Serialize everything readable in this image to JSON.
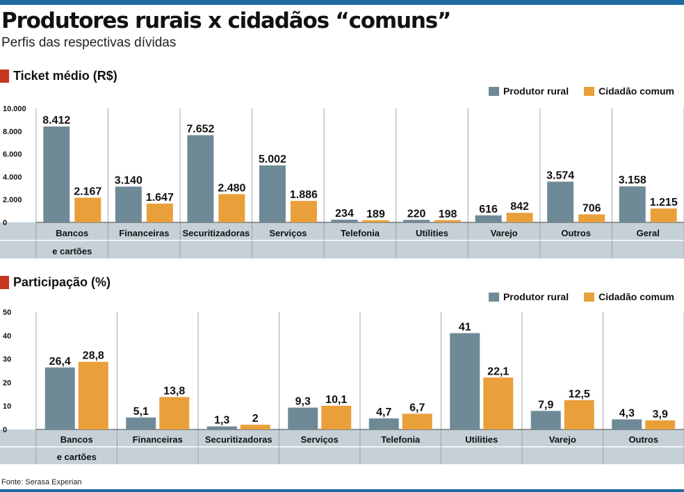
{
  "title": "Produtores rurais x cidadãos “comuns”",
  "subtitle": "Perfis das respectivas dívidas",
  "source": "Fonte: Serasa Experian",
  "colors": {
    "produtor": "#6f8a97",
    "cidadao": "#e9a03a",
    "accent": "#c6361c",
    "band": "#c5d0d7",
    "frame": "#1f6aa0"
  },
  "legend": {
    "produtor": "Produtor rural",
    "cidadao": "Cidadão comum"
  },
  "chart_data": [
    {
      "type": "bar",
      "title": "Ticket médio (R$)",
      "categories": [
        "Bancos",
        "Financeiras",
        "Securitizadoras",
        "Serviços",
        "Telefonia",
        "Utilities",
        "Varejo",
        "Outros",
        "Geral"
      ],
      "category_sublabels": [
        "e cartões",
        "",
        "",
        "",
        "",
        "",
        "",
        "",
        ""
      ],
      "series": [
        {
          "name": "Produtor rural",
          "values": [
            8412,
            3140,
            7652,
            5002,
            234,
            220,
            616,
            3574,
            3158
          ],
          "labels": [
            "8.412",
            "3.140",
            "7.652",
            "5.002",
            "234",
            "220",
            "616",
            "3.574",
            "3.158"
          ]
        },
        {
          "name": "Cidadão comum",
          "values": [
            2167,
            1647,
            2480,
            1886,
            189,
            198,
            842,
            706,
            1215
          ],
          "labels": [
            "2.167",
            "1.647",
            "2.480",
            "1.886",
            "189",
            "198",
            "842",
            "706",
            "1.215"
          ]
        }
      ],
      "yticks": [
        0,
        2000,
        4000,
        6000,
        8000,
        10000
      ],
      "ytick_labels": [
        "0",
        "2.000",
        "4.000",
        "6.000",
        "8.000",
        "10.000"
      ],
      "ylim": [
        0,
        10000
      ],
      "grid": false,
      "legend_position": "top-right"
    },
    {
      "type": "bar",
      "title": "Participação (%)",
      "categories": [
        "Bancos",
        "Financeiras",
        "Securitizadoras",
        "Serviços",
        "Telefonia",
        "Utilities",
        "Varejo",
        "Outros"
      ],
      "category_sublabels": [
        "e cartões",
        "",
        "",
        "",
        "",
        "",
        "",
        ""
      ],
      "series": [
        {
          "name": "Produtor rural",
          "values": [
            26.4,
            5.1,
            1.3,
            9.3,
            4.7,
            41,
            7.9,
            4.3
          ],
          "labels": [
            "26,4",
            "5,1",
            "1,3",
            "9,3",
            "4,7",
            "41",
            "7,9",
            "4,3"
          ]
        },
        {
          "name": "Cidadão comum",
          "values": [
            28.8,
            13.8,
            2,
            10.1,
            6.7,
            22.1,
            12.5,
            3.9
          ],
          "labels": [
            "28,8",
            "13,8",
            "2",
            "10,1",
            "6,7",
            "22,1",
            "12,5",
            "3,9"
          ]
        }
      ],
      "yticks": [
        0,
        10,
        20,
        30,
        40,
        50
      ],
      "ytick_labels": [
        "0",
        "10",
        "20",
        "30",
        "40",
        "50"
      ],
      "ylim": [
        0,
        50
      ],
      "grid": false,
      "legend_position": "top-right"
    }
  ]
}
